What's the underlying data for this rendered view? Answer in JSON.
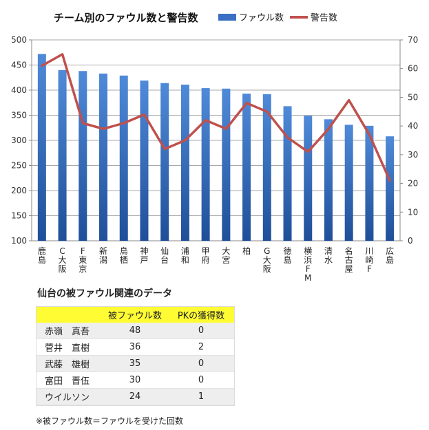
{
  "chart_data": {
    "type": "bar+line",
    "title": "チーム別のファウル数と警告数",
    "categories": [
      "鹿島",
      "C大阪",
      "F東京",
      "新潟",
      "鳥栖",
      "神戸",
      "仙台",
      "浦和",
      "甲府",
      "大宮",
      "柏",
      "G大阪",
      "徳島",
      "横浜FM",
      "清水",
      "名古屋",
      "川崎F",
      "広島"
    ],
    "series": [
      {
        "name": "ファウル数",
        "type": "bar",
        "axis": "left",
        "color": "#3a6fc4",
        "values": [
          472,
          440,
          438,
          433,
          429,
          419,
          414,
          411,
          404,
          403,
          393,
          392,
          368,
          349,
          342,
          331,
          329,
          308
        ]
      },
      {
        "name": "警告数",
        "type": "line",
        "axis": "right",
        "color": "#c0504d",
        "values": [
          61,
          65,
          41,
          39,
          41,
          44,
          32,
          35,
          42,
          39,
          48,
          45,
          36,
          31,
          39,
          49,
          37,
          21
        ]
      }
    ],
    "left_axis": {
      "min": 100,
      "max": 500,
      "ticks": [
        100,
        150,
        200,
        250,
        300,
        350,
        400,
        450,
        500
      ]
    },
    "right_axis": {
      "min": 0,
      "max": 70,
      "ticks": [
        0,
        10,
        20,
        30,
        40,
        50,
        60,
        70
      ]
    },
    "legend_position": "top-right",
    "grid": true
  },
  "table": {
    "title": "仙台の被ファウル関連のデータ",
    "headers": [
      "",
      "被ファウル数",
      "PKの獲得数"
    ],
    "rows": [
      [
        "赤嶺　真吾",
        "48",
        "0"
      ],
      [
        "菅井　直樹",
        "36",
        "2"
      ],
      [
        "武藤　雄樹",
        "35",
        "0"
      ],
      [
        "富田　晋伍",
        "30",
        "0"
      ],
      [
        "ウイルソン",
        "24",
        "1"
      ]
    ],
    "footnote": "※被ファウル数＝ファウルを受けた回数"
  }
}
